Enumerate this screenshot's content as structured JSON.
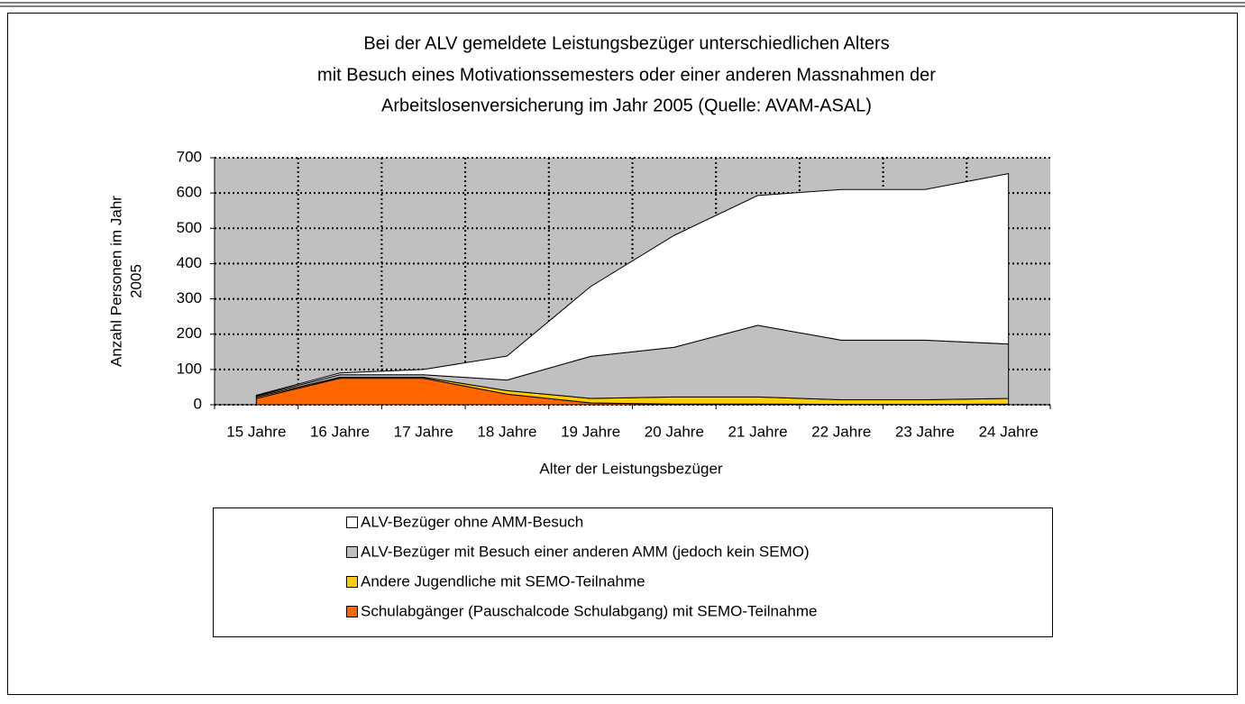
{
  "chart_data": {
    "type": "stacked_area",
    "title": [
      "Bei der ALV gemeldete Leistungsbezüger unterschiedlichen Alters",
      "mit Besuch eines Motivationssemesters oder einer anderen Massnahmen der",
      "Arbeitslosenversicherung im Jahr 2005 (Quelle: AVAM-ASAL)"
    ],
    "ylabel": [
      "Anzahl Personen im Jahr",
      "2005"
    ],
    "xlabel": "Alter der Leistungsbezüger",
    "categories": [
      "15 Jahre",
      "16 Jahre",
      "17 Jahre",
      "18 Jahre",
      "19 Jahre",
      "20 Jahre",
      "21 Jahre",
      "22 Jahre",
      "23 Jahre",
      "24 Jahre"
    ],
    "series": [
      {
        "name": "Schulabgänger (Pauschalcode Schulabgang) mit SEMO-Teilnahme",
        "color": "#ff6600",
        "values": [
          18,
          75,
          75,
          30,
          5,
          2,
          2,
          1,
          1,
          2
        ]
      },
      {
        "name": "Andere Jugendliche mit  SEMO-Teilnahme",
        "color": "#ffcc00",
        "values": [
          4,
          3,
          3,
          10,
          13,
          20,
          20,
          13,
          13,
          16
        ]
      },
      {
        "name": "ALV-Bezüger mit Besuch einer anderen AMM (jedoch kein SEMO)",
        "color": "#c0c0c0",
        "values": [
          3,
          7,
          7,
          30,
          119,
          141,
          203,
          169,
          169,
          154
        ]
      },
      {
        "name": "ALV-Bezüger ohne AMM-Besuch",
        "color": "#ffffff",
        "values": [
          2,
          5,
          15,
          68,
          198,
          317,
          368,
          427,
          427,
          483
        ]
      }
    ],
    "ylim": [
      0,
      700
    ],
    "yticks": [
      0,
      100,
      200,
      300,
      400,
      500,
      600,
      700
    ],
    "grid": true,
    "plot_background": "#c0c0c0"
  }
}
